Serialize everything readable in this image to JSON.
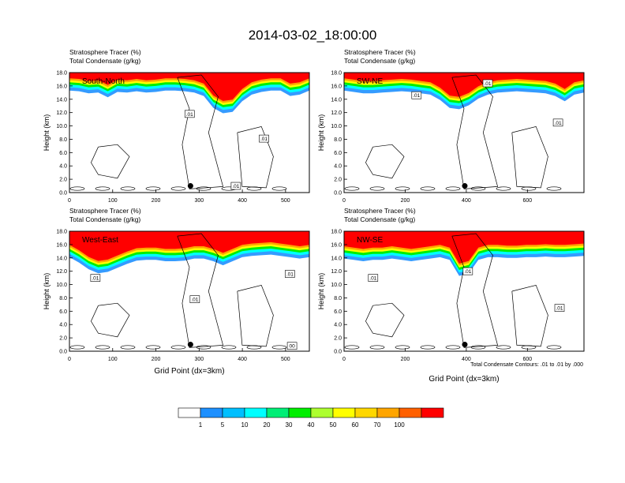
{
  "title": "2014-03-02_18:00:00",
  "colors": {
    "scale": [
      "#ffffff",
      "#1e90ff",
      "#00bfff",
      "#00ffff",
      "#00ee76",
      "#00ee00",
      "#adff2f",
      "#ffff00",
      "#ffd700",
      "#ffa500",
      "#ff6000",
      "#ff0000"
    ],
    "contour": "#000000"
  },
  "colorbar": {
    "labels": [
      "1",
      "5",
      "10",
      "20",
      "30",
      "40",
      "50",
      "60",
      "70",
      "100"
    ]
  },
  "footnote": "Total Condensate Contours: .01 to .01 by .000",
  "chart_data": [
    {
      "type": "heatmap",
      "panel_label": "South-North",
      "title_lines": [
        "Stratosphere Tracer   (%)",
        "Total Condensate   (g/kg)"
      ],
      "xlabel": "",
      "ylabel": "Height (km)",
      "xlim": [
        0,
        555
      ],
      "ylim": [
        0,
        18
      ],
      "xticks": [
        "0",
        "100",
        "200",
        "300",
        "400",
        "500"
      ],
      "yticks": [
        "0.0",
        "2.0",
        "4.0",
        "6.0",
        "8.0",
        "10.0",
        "12.0",
        "14.0",
        "16.0",
        "18.0"
      ],
      "tracer_base_km": [
        15.6,
        15.5,
        15.2,
        15.3,
        14.6,
        15.4,
        15.3,
        15.5,
        15.3,
        15.4,
        15.6,
        15.6,
        15.5,
        15.3,
        14.8,
        13.0,
        12.2,
        12.4,
        14.0,
        15.0,
        15.4,
        15.6,
        15.6,
        14.8,
        15.0,
        15.6
      ],
      "contour_labels": [
        {
          "x": 278,
          "y": 11.8,
          "text": ".01"
        },
        {
          "x": 450,
          "y": 8.1,
          "text": ".01"
        },
        {
          "x": 385,
          "y": 1.0,
          "text": ".01"
        }
      ],
      "marker": {
        "x": 280,
        "y": 1.0
      }
    },
    {
      "type": "heatmap",
      "panel_label": "SW-NE",
      "title_lines": [
        "Stratosphere Tracer   (%)",
        "Total Condensate   (g/kg)"
      ],
      "xlabel": "",
      "ylabel": "Height (km)",
      "xlim": [
        0,
        785
      ],
      "ylim": [
        0,
        18
      ],
      "xticks": [
        "0",
        "200",
        "400",
        "600"
      ],
      "yticks": [
        "0.0",
        "2.0",
        "4.0",
        "6.0",
        "8.0",
        "10.0",
        "12.0",
        "14.0",
        "16.0",
        "18.0"
      ],
      "tracer_base_km": [
        15.6,
        15.4,
        15.2,
        15.2,
        15.3,
        15.4,
        15.5,
        15.4,
        15.2,
        15.0,
        14.2,
        13.0,
        12.8,
        13.4,
        14.4,
        15.0,
        15.3,
        15.4,
        15.5,
        15.4,
        15.3,
        15.2,
        14.8,
        14.0,
        15.0,
        15.3
      ],
      "contour_labels": [
        {
          "x": 237,
          "y": 14.6,
          "text": ".01"
        },
        {
          "x": 470,
          "y": 16.4,
          "text": ".01"
        },
        {
          "x": 700,
          "y": 10.5,
          "text": ".01"
        }
      ],
      "marker": {
        "x": 395,
        "y": 1.0
      }
    },
    {
      "type": "heatmap",
      "panel_label": "West-East",
      "title_lines": [
        "Stratosphere Tracer   (%)",
        "Total Condensate   (g/kg)"
      ],
      "xlabel": "Grid Point (dx=3km)",
      "ylabel": "Height (km)",
      "xlim": [
        0,
        555
      ],
      "ylim": [
        0,
        18
      ],
      "xticks": [
        "0",
        "100",
        "200",
        "300",
        "400",
        "500"
      ],
      "yticks": [
        "0.0",
        "2.0",
        "4.0",
        "6.0",
        "8.0",
        "10.0",
        "12.0",
        "14.0",
        "16.0",
        "18.0"
      ],
      "tracer_base_km": [
        14.4,
        13.6,
        12.6,
        12.0,
        12.2,
        12.8,
        13.4,
        13.9,
        14.0,
        14.0,
        13.8,
        13.8,
        13.9,
        14.2,
        14.2,
        13.8,
        13.2,
        13.8,
        14.4,
        14.6,
        14.7,
        14.8,
        14.6,
        14.4,
        14.2,
        14.4
      ],
      "contour_labels": [
        {
          "x": 60,
          "y": 11.0,
          "text": ".01"
        },
        {
          "x": 290,
          "y": 7.8,
          "text": ".01"
        },
        {
          "x": 510,
          "y": 11.6,
          "text": ".01"
        },
        {
          "x": 515,
          "y": 0.8,
          "text": "00"
        }
      ],
      "marker": {
        "x": 280,
        "y": 1.0
      }
    },
    {
      "type": "heatmap",
      "panel_label": "NW-SE",
      "title_lines": [
        "Stratosphere Tracer   (%)",
        "Total Condensate   (g/kg)"
      ],
      "xlabel": "Grid Point (dx=3km)",
      "ylabel": "Height (km)",
      "xlim": [
        0,
        785
      ],
      "ylim": [
        0,
        18
      ],
      "xticks": [
        "0",
        "200",
        "400",
        "600"
      ],
      "yticks": [
        "0.0",
        "2.0",
        "4.0",
        "6.0",
        "8.0",
        "10.0",
        "12.0",
        "14.0",
        "16.0",
        "18.0"
      ],
      "tracer_base_km": [
        14.2,
        14.0,
        13.8,
        14.0,
        14.0,
        14.2,
        14.0,
        13.8,
        14.0,
        14.2,
        14.4,
        14.0,
        11.6,
        12.0,
        14.0,
        14.4,
        14.4,
        14.3,
        14.3,
        14.4,
        14.4,
        14.5,
        14.4,
        14.4,
        14.5,
        14.6
      ],
      "contour_labels": [
        {
          "x": 95,
          "y": 11.0,
          "text": ".01"
        },
        {
          "x": 405,
          "y": 12.0,
          "text": ".01"
        },
        {
          "x": 705,
          "y": 6.5,
          "text": ".01"
        }
      ],
      "marker": {
        "x": 395,
        "y": 1.0
      }
    }
  ]
}
